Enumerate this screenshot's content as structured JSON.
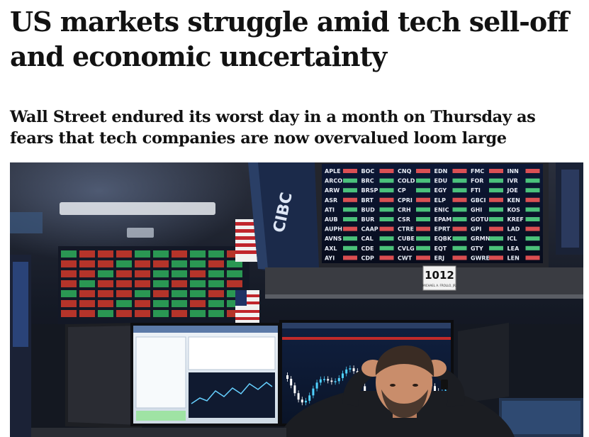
{
  "article": {
    "headline_line1": "US markets struggle amid tech sell-off",
    "headline_line2": "and economic uncertainty",
    "standfirst_line1": "Wall Street endured its worst day in a month on Thursday as",
    "standfirst_line2": "fears that tech companies are now overvalued loom large"
  },
  "photo": {
    "bank_logo": "CIBC",
    "post_number": "1012",
    "post_label": "MICHAEL A. FROLLO, JR.",
    "ticker_rows": [
      [
        "APLE",
        "BOC",
        "CNQ",
        "EDN",
        "FMC",
        "INN"
      ],
      [
        "ARCO",
        "BRC",
        "COLD",
        "EDU",
        "FOR",
        "IVR"
      ],
      [
        "ARW",
        "BRSP",
        "CP",
        "EGY",
        "FTI",
        "JOE"
      ],
      [
        "ASR",
        "BRT",
        "CPRI",
        "ELP",
        "GBCI",
        "KEN"
      ],
      [
        "ATI",
        "BUD",
        "CRH",
        "ENIC",
        "GHI",
        "KOS"
      ],
      [
        "AUB",
        "BUR",
        "CSR",
        "EPAM",
        "GOTU",
        "KREF"
      ],
      [
        "AUPH",
        "CAAP",
        "CTRE",
        "EPRT",
        "GPI",
        "LAD"
      ],
      [
        "AVNS",
        "CAL",
        "CUBE",
        "EQBK",
        "GRMN",
        "ICL"
      ],
      [
        "AXL",
        "CDE",
        "CVLG",
        "EQT",
        "GTY",
        "LEA"
      ],
      [
        "AYI",
        "CDP",
        "CWT",
        "ERJ",
        "GWRE",
        "LEN"
      ]
    ],
    "colors": {
      "sky": "#1a2030",
      "board_bg": "#0b1226",
      "ticker_text": "#e8ecf5",
      "value_green": "#57e08a",
      "value_red": "#ff5a5a",
      "screen_bg": "#dfe8f2",
      "shirt": "#1b1d22",
      "skin": "#c98d6b"
    }
  }
}
